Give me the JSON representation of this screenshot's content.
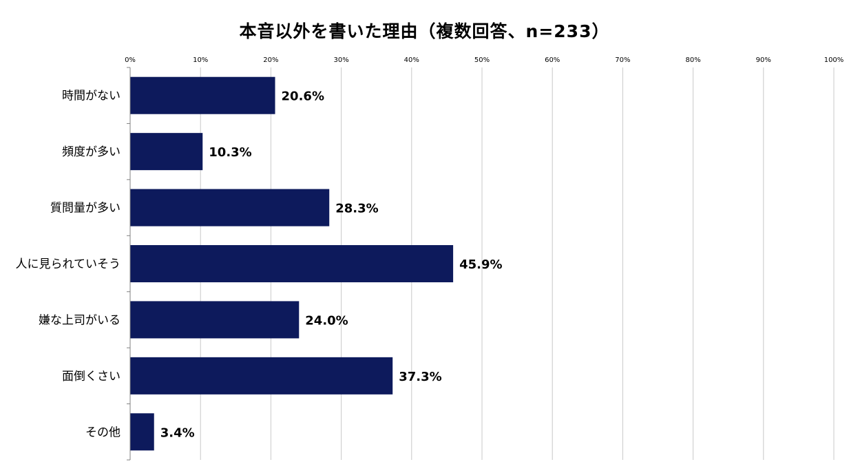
{
  "chart_data": {
    "type": "bar",
    "orientation": "horizontal",
    "title": "本音以外を書いた理由（複数回答、n=233）",
    "categories": [
      "時間がない",
      "頻度が多い",
      "質問量が多い",
      "人に見られていそう",
      "嫌な上司がいる",
      "面倒くさい",
      "その他"
    ],
    "values": [
      20.6,
      10.3,
      28.3,
      45.9,
      24.0,
      37.3,
      3.4
    ],
    "data_labels": [
      "20.6%",
      "10.3%",
      "28.3%",
      "45.9%",
      "24.0%",
      "37.3%",
      "3.4%"
    ],
    "xlim": [
      0,
      100
    ],
    "x_ticks": [
      0,
      10,
      20,
      30,
      40,
      50,
      60,
      70,
      80,
      90,
      100
    ],
    "x_tick_labels": [
      "0%",
      "10%",
      "20%",
      "30%",
      "40%",
      "50%",
      "60%",
      "70%",
      "80%",
      "90%",
      "100%"
    ],
    "x_axis_position": "top",
    "grid": true,
    "legend": "none",
    "colors": {
      "bar": "#0d1a5c",
      "grid": "#c8c8c8",
      "axis": "#808080"
    }
  }
}
